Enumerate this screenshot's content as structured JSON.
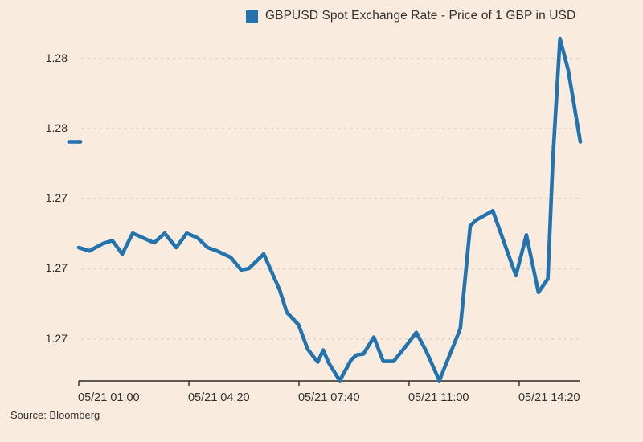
{
  "chart": {
    "title": "GBPUSD Spot Exchange Rate - Price of 1 GBP in USD",
    "source": "Source: Bloomberg",
    "colors": {
      "background": "#f9ecdf",
      "line": "#2273ae",
      "axis": "#2b2926",
      "grid": "#e5d5c4",
      "text": "#33302c"
    }
  },
  "chart_data": {
    "type": "line",
    "title": "GBPUSD Spot Exchange Rate - Price of 1 GBP in USD",
    "source": "Source: Bloomberg",
    "legend_position": "top-center",
    "grid": "horizontal-dotted",
    "x_axis": {
      "xlim_minutes": [
        60,
        971
      ],
      "ticks": [
        {
          "label": "05/21 01:00",
          "minutes": 60
        },
        {
          "label": "05/21 04:20",
          "minutes": 260
        },
        {
          "label": "05/21 07:40",
          "minutes": 460
        },
        {
          "label": "05/21 11:00",
          "minutes": 660
        },
        {
          "label": "05/21 14:20",
          "minutes": 860
        }
      ]
    },
    "y_axis": {
      "ylim": [
        1.271,
        1.2833
      ],
      "ticks": [
        {
          "label": "1.28",
          "value": 1.2825
        },
        {
          "label": "1.28",
          "value": 1.28
        },
        {
          "label": "1.27",
          "value": 1.2775
        },
        {
          "label": "1.27",
          "value": 1.275
        },
        {
          "label": "1.27",
          "value": 1.2725
        }
      ]
    },
    "series": [
      {
        "name": "GBPUSD Spot Exchange Rate - Price of 1 GBP in USD",
        "points": [
          [
            60,
            1.27576
          ],
          [
            79,
            1.27564
          ],
          [
            104,
            1.2759
          ],
          [
            121,
            1.27601
          ],
          [
            139,
            1.27553
          ],
          [
            158,
            1.27627
          ],
          [
            197,
            1.27593
          ],
          [
            216,
            1.27627
          ],
          [
            237,
            1.27576
          ],
          [
            256,
            1.27627
          ],
          [
            276,
            1.2761
          ],
          [
            294,
            1.27576
          ],
          [
            311,
            1.27564
          ],
          [
            336,
            1.27541
          ],
          [
            355,
            1.27496
          ],
          [
            369,
            1.27501
          ],
          [
            396,
            1.27553
          ],
          [
            425,
            1.27424
          ],
          [
            438,
            1.27344
          ],
          [
            459,
            1.27301
          ],
          [
            476,
            1.27213
          ],
          [
            494,
            1.27167
          ],
          [
            504,
            1.2721
          ],
          [
            514,
            1.27164
          ],
          [
            534,
            1.27101
          ],
          [
            555,
            1.27176
          ],
          [
            565,
            1.27193
          ],
          [
            577,
            1.27196
          ],
          [
            596,
            1.27256
          ],
          [
            613,
            1.2717
          ],
          [
            632,
            1.2717
          ],
          [
            654,
            1.27224
          ],
          [
            673,
            1.27273
          ],
          [
            691,
            1.27207
          ],
          [
            715,
            1.27101
          ],
          [
            753,
            1.27287
          ],
          [
            771,
            1.27653
          ],
          [
            781,
            1.27673
          ],
          [
            812,
            1.27707
          ],
          [
            854,
            1.27476
          ],
          [
            873,
            1.27621
          ],
          [
            895,
            1.27416
          ],
          [
            912,
            1.27464
          ],
          [
            921,
            1.27887
          ],
          [
            934,
            1.28321
          ],
          [
            949,
            1.2821
          ],
          [
            971,
            1.27953
          ]
        ]
      },
      {
        "name": "detached-left-segment",
        "points": [
          [
            42,
            1.27953
          ],
          [
            63,
            1.27953
          ]
        ]
      }
    ]
  }
}
